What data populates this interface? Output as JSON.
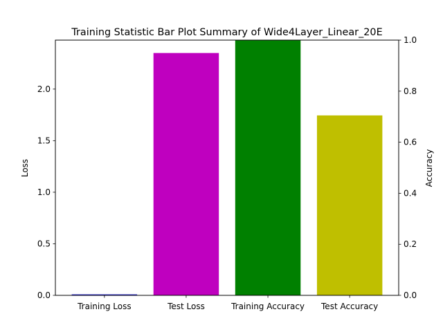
{
  "chart_data": {
    "type": "bar",
    "title": "Training Statistic Bar Plot Summary of Wide4Layer_Linear_20E",
    "categories": [
      "Training Loss",
      "Test Loss",
      "Training Accuracy",
      "Test Accuracy"
    ],
    "series": [
      {
        "axis": "left",
        "bars": [
          {
            "category": "Training Loss",
            "value": 0.009,
            "color": "#0000bf"
          },
          {
            "category": "Test Loss",
            "value": 2.35,
            "color": "#bf00bf"
          }
        ]
      },
      {
        "axis": "right",
        "bars": [
          {
            "category": "Training Accuracy",
            "value": 1.0,
            "color": "#008000"
          },
          {
            "category": "Test Accuracy",
            "value": 0.705,
            "color": "#bfbf00"
          }
        ]
      }
    ],
    "left_axis": {
      "label": "Loss",
      "ylim": [
        0,
        2.475
      ],
      "ticks": [
        0.0,
        0.5,
        1.0,
        1.5,
        2.0
      ],
      "tick_labels": [
        "0.0",
        "0.5",
        "1.0",
        "1.5",
        "2.0"
      ]
    },
    "right_axis": {
      "label": "Accuracy",
      "ylim": [
        0,
        1.0
      ],
      "ticks": [
        0.0,
        0.2,
        0.4,
        0.6,
        0.8,
        1.0
      ],
      "tick_labels": [
        "0.0",
        "0.2",
        "0.4",
        "0.6",
        "0.8",
        "1.0"
      ]
    },
    "grid": false,
    "legend": "none"
  }
}
